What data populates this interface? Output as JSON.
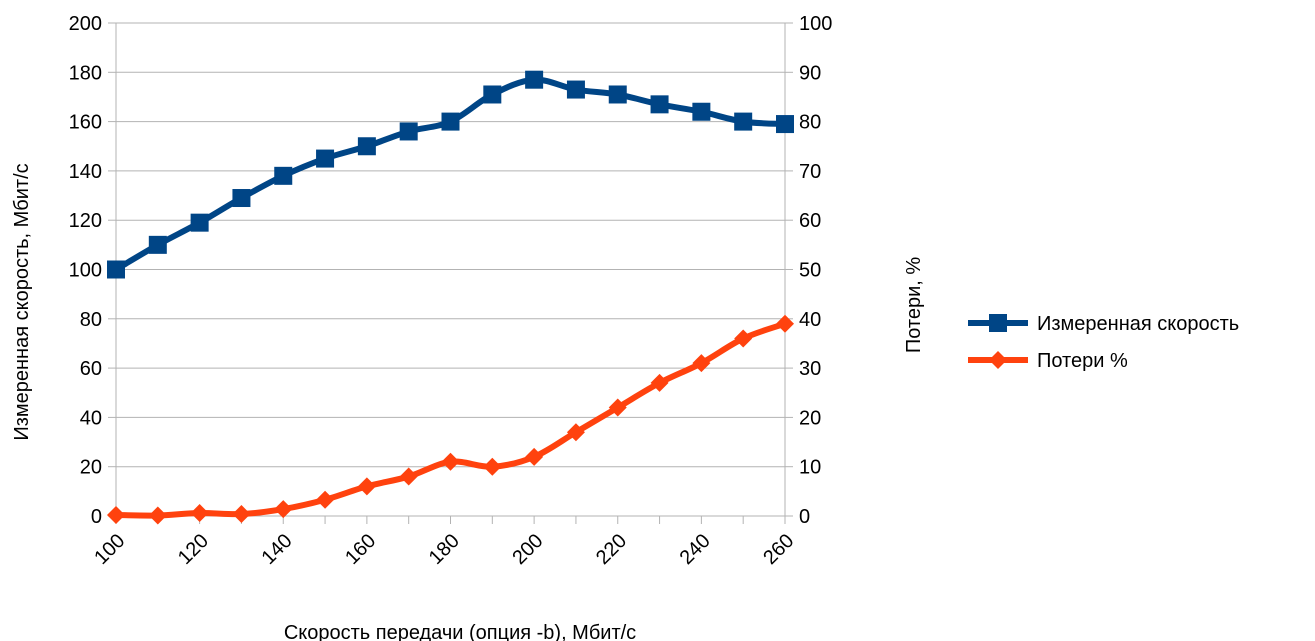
{
  "chart_data": {
    "type": "line",
    "xlabel": "Скорость передачи (опция -b), Мбит/с",
    "ylabel": "Измеренная скорость, Мбит/с",
    "y2label": "Потери, %",
    "x": [
      100,
      110,
      120,
      130,
      140,
      150,
      160,
      170,
      180,
      190,
      200,
      210,
      220,
      230,
      240,
      250,
      260
    ],
    "x_tick_labels": [
      "100",
      "120",
      "140",
      "160",
      "180",
      "200",
      "220",
      "240",
      "260"
    ],
    "x_ticks": [
      100,
      120,
      140,
      160,
      180,
      200,
      220,
      240,
      260
    ],
    "xlim": [
      100,
      260
    ],
    "ylim": [
      0,
      200
    ],
    "y_ticks": [
      0,
      20,
      40,
      60,
      80,
      100,
      120,
      140,
      160,
      180,
      200
    ],
    "y2lim": [
      0,
      100
    ],
    "y2_ticks": [
      0,
      10,
      20,
      30,
      40,
      50,
      60,
      70,
      80,
      90,
      100
    ],
    "grid": true,
    "legend_position": "right",
    "series": [
      {
        "name": "Измеренная скорость",
        "axis": "left",
        "marker": "square",
        "color": "#004586",
        "values": [
          100,
          110,
          119,
          129,
          138,
          145,
          150,
          156,
          160,
          171,
          177,
          173,
          171,
          167,
          164,
          160,
          159
        ]
      },
      {
        "name": "Потери %",
        "axis": "right",
        "marker": "diamond",
        "color": "#ff420e",
        "values": [
          0.2,
          0.1,
          0.6,
          0.4,
          1.4,
          3.3,
          6,
          8,
          11,
          10,
          12,
          17,
          22,
          27,
          31,
          36,
          39
        ]
      }
    ]
  }
}
